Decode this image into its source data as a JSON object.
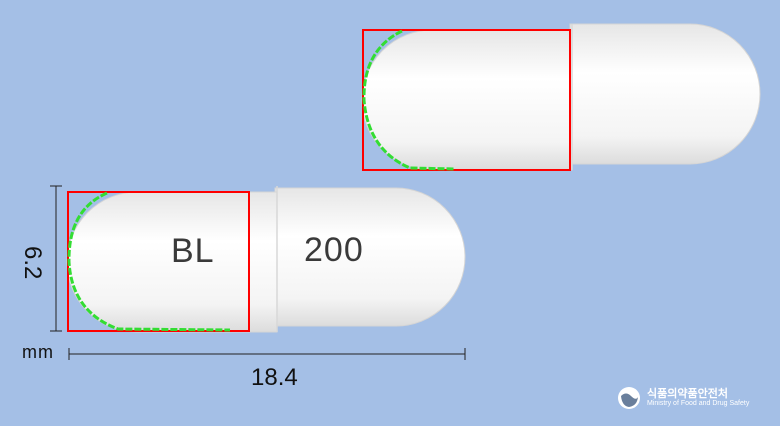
{
  "pill": {
    "imprint_left": "BL",
    "imprint_right": "200"
  },
  "dimensions": {
    "height_value": "6.2",
    "length_value": "18.4",
    "unit": "mm"
  },
  "logo": {
    "name_ko": "식품의약품안전처",
    "name_en": "Ministry of Food and Drug Safety"
  },
  "colors": {
    "background": "#a4bfe6",
    "capsule": "#f7f7f7",
    "box": "#ff0000",
    "edge_points": "#22dd22"
  }
}
